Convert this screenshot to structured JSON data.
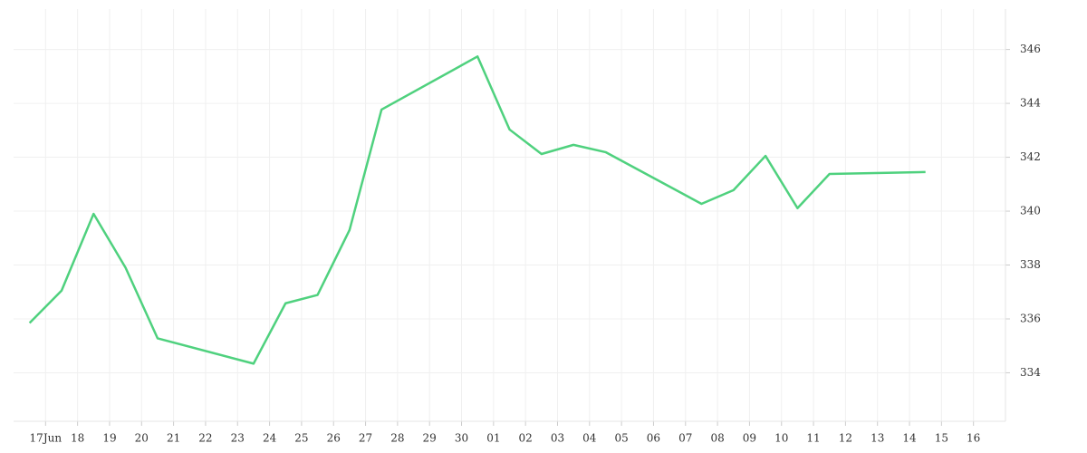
{
  "chart_data": {
    "type": "line",
    "x": [
      16.5,
      17.5,
      18.5,
      19.5,
      20.5,
      23.5,
      24.5,
      25.5,
      26.5,
      27.5,
      30.5,
      31.5,
      32.5,
      33.5,
      34.5,
      37.5,
      38.5,
      39.5,
      40.5,
      41.5,
      44.5
    ],
    "values": [
      335.85,
      337.05,
      339.9,
      337.9,
      335.28,
      334.34,
      336.58,
      336.89,
      339.3,
      343.77,
      345.74,
      343.03,
      342.12,
      342.46,
      342.19,
      340.27,
      340.78,
      342.05,
      340.11,
      341.38,
      341.45
    ],
    "color": "#4fd17e",
    "xlim": [
      16,
      47
    ],
    "xticks": [
      {
        "value": 17,
        "label": "17Jun"
      },
      18,
      19,
      20,
      21,
      22,
      23,
      24,
      25,
      26,
      27,
      28,
      29,
      30,
      {
        "value": 31,
        "label": "01"
      },
      {
        "value": 32,
        "label": "02"
      },
      {
        "value": 33,
        "label": "03"
      },
      {
        "value": 34,
        "label": "04"
      },
      {
        "value": 35,
        "label": "05"
      },
      {
        "value": 36,
        "label": "06"
      },
      {
        "value": 37,
        "label": "07"
      },
      {
        "value": 38,
        "label": "08"
      },
      {
        "value": 39,
        "label": "09"
      },
      {
        "value": 40,
        "label": "10"
      },
      {
        "value": 41,
        "label": "11"
      },
      {
        "value": 42,
        "label": "12"
      },
      {
        "value": 43,
        "label": "13"
      },
      {
        "value": 44,
        "label": "14"
      },
      {
        "value": 45,
        "label": "15"
      },
      {
        "value": 46,
        "label": "16"
      }
    ],
    "ylim": [
      332.2,
      347.5
    ],
    "yticks": [
      334,
      336,
      338,
      340,
      342,
      344,
      346
    ],
    "grid": true
  }
}
